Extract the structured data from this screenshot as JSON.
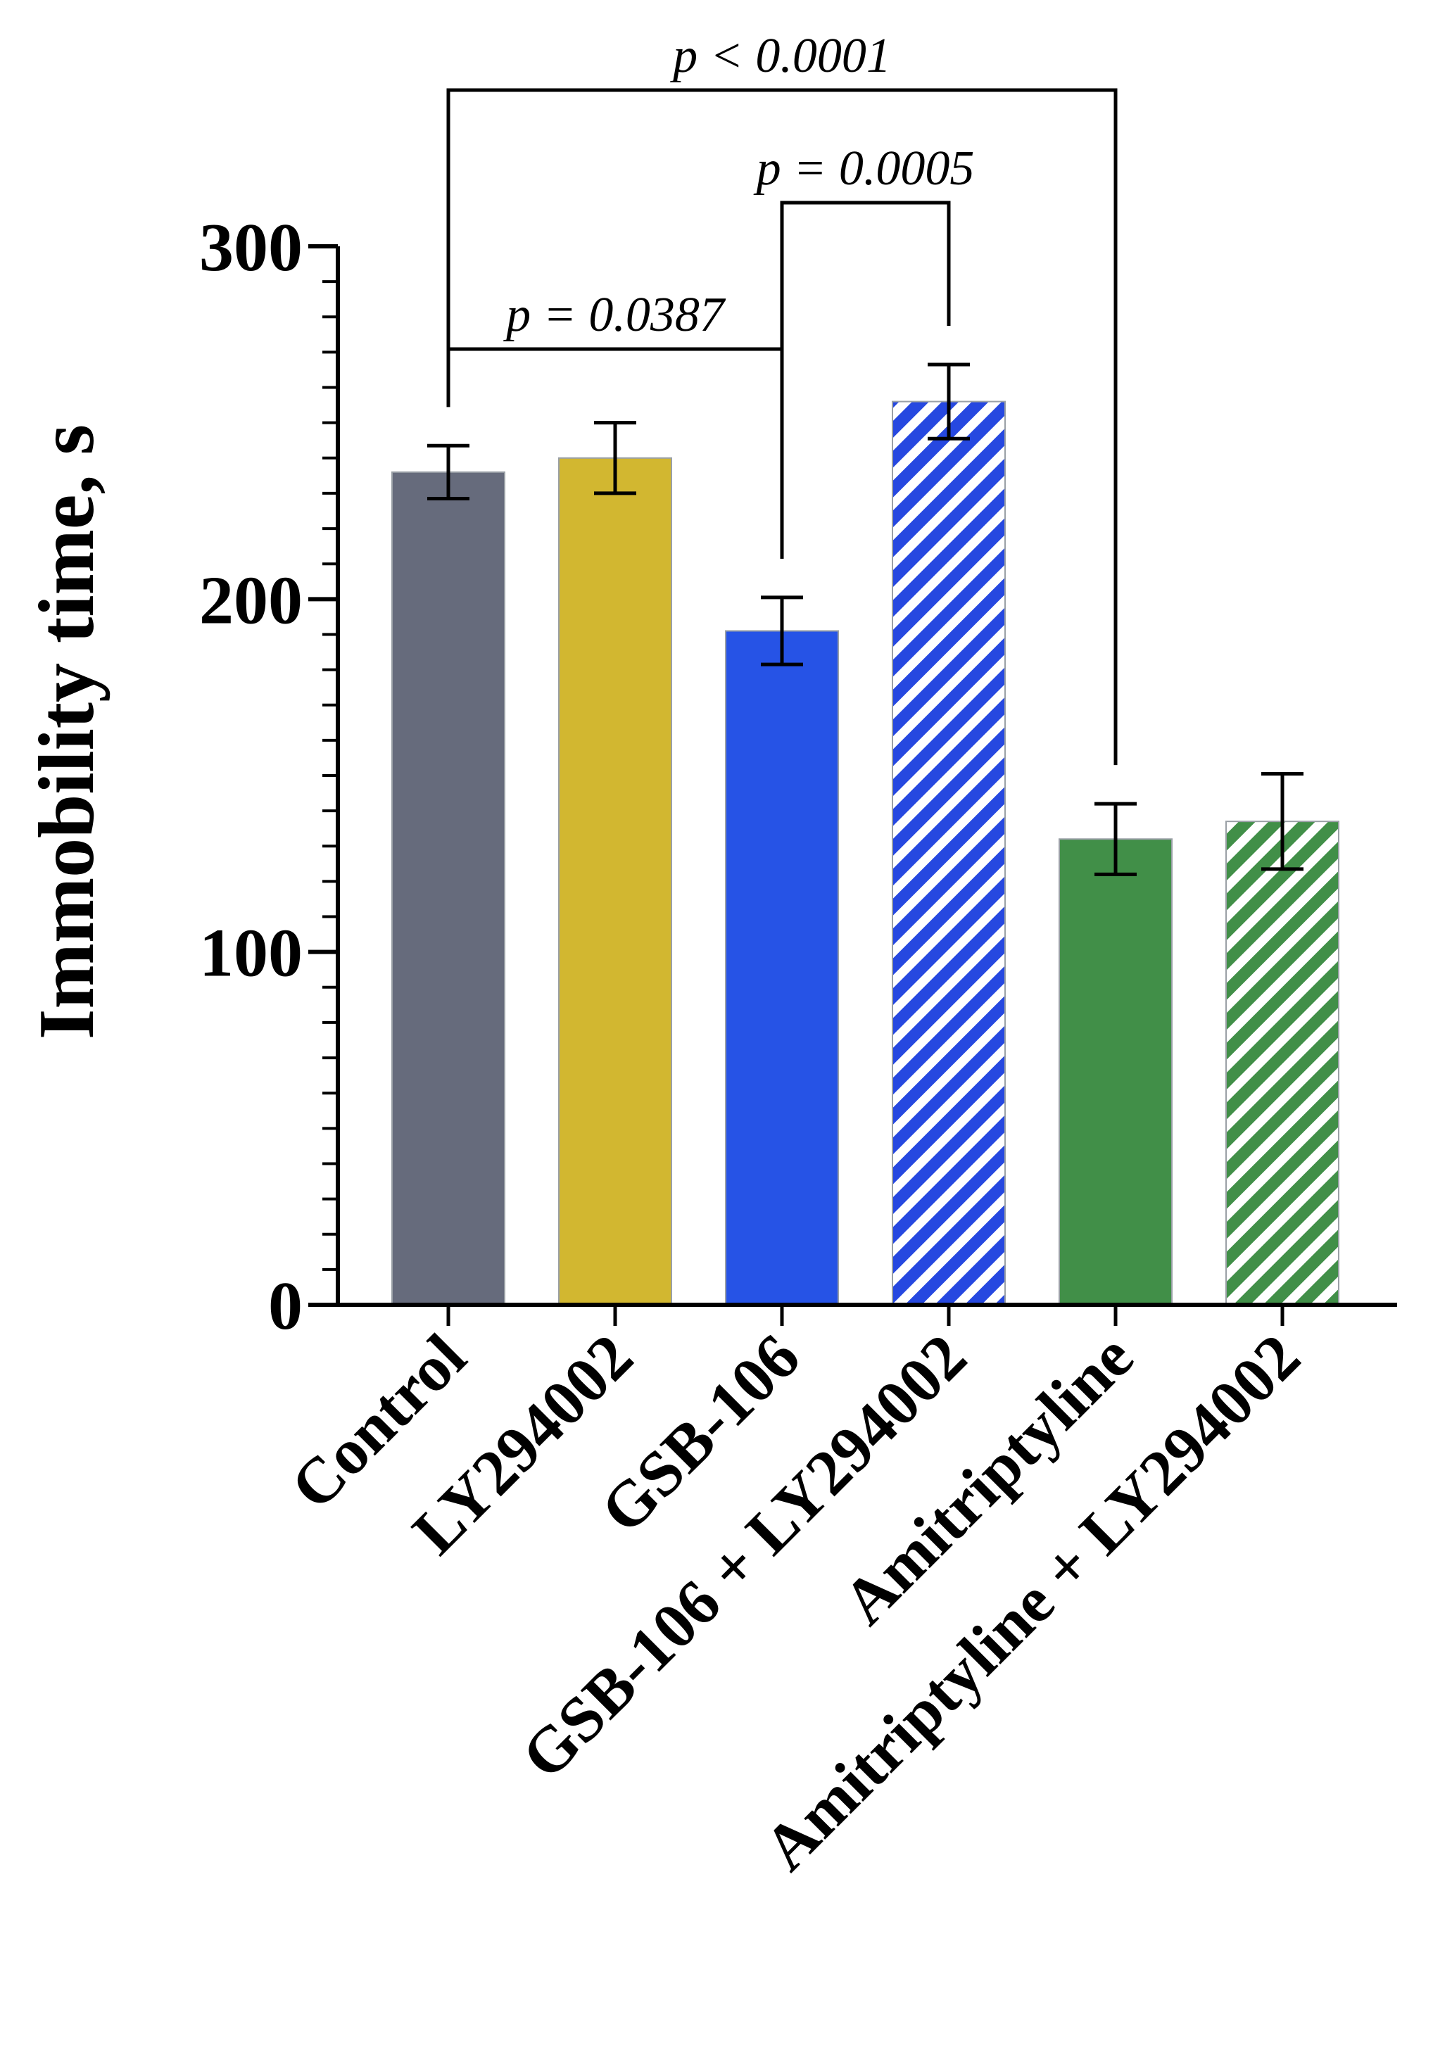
{
  "chart_data": {
    "type": "bar",
    "title": "",
    "xlabel": "",
    "ylabel": "Immobility time, s",
    "ylim": [
      0,
      300
    ],
    "yticks": [
      "0",
      "100",
      "200",
      "300"
    ],
    "minor_tick_step": 10,
    "grid": false,
    "legend": "none",
    "categories": [
      "Control",
      "LY294002",
      "GSB-106",
      "GSB-106 + LY294002",
      "Amitriptyline",
      "Amitriptyline + LY294002"
    ],
    "values": [
      236,
      240,
      191,
      256,
      132,
      137
    ],
    "errors": [
      7.5,
      10,
      9.5,
      10.5,
      10,
      13.5
    ],
    "colors": [
      "#666b7c",
      "#d2b730",
      "#2653e6",
      "#2648e0",
      "#418f48",
      "#418f48"
    ],
    "patterns": [
      "solid",
      "solid",
      "solid",
      "hatched",
      "solid",
      "hatched"
    ],
    "comparisons": [
      {
        "from": 0,
        "to": 2,
        "label": "p = 0.0387",
        "level": 1
      },
      {
        "from": 2,
        "to": 3,
        "label": "p = 0.0005",
        "level": 2
      },
      {
        "from": 0,
        "to": 4,
        "label": "p < 0.0001",
        "level": 3
      }
    ]
  }
}
